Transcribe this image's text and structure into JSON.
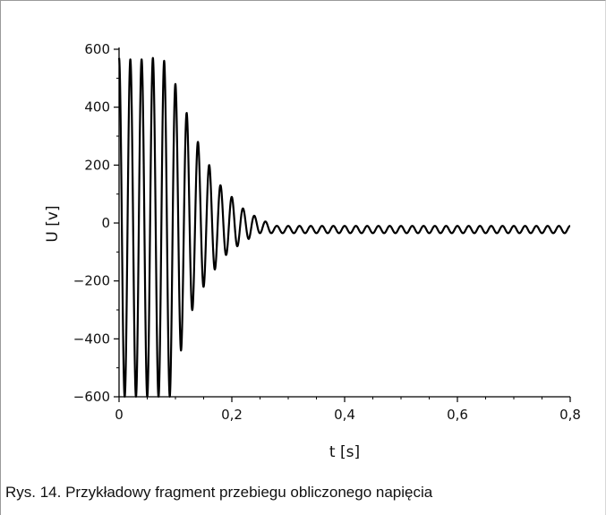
{
  "chart_data": {
    "type": "line",
    "title": "",
    "xlabel": "t [s]",
    "ylabel": "U [v]",
    "xlim": [
      0,
      0.8
    ],
    "ylim": [
      -600,
      600
    ],
    "x_ticks": [
      0,
      0.2,
      0.4,
      0.6,
      0.8
    ],
    "x_tick_labels": [
      "0",
      "0,2",
      "0,4",
      "0,6",
      "0,8"
    ],
    "y_ticks": [
      -600,
      -400,
      -200,
      0,
      200,
      400,
      600
    ],
    "y_tick_labels": [
      "−600",
      "−400",
      "−200",
      "0",
      "200",
      "400",
      "600"
    ],
    "grid": false,
    "legend": "none",
    "line_color": "#000000",
    "series": [
      {
        "signal_description": "decaying oscillation settling to a small steady ripple around -20 V",
        "x": [
          0,
          0.01,
          0.02,
          0.03,
          0.04,
          0.05,
          0.06,
          0.07,
          0.08,
          0.09,
          0.1,
          0.11,
          0.12,
          0.13,
          0.14,
          0.15,
          0.16,
          0.17,
          0.18,
          0.19,
          0.2,
          0.21,
          0.22,
          0.23,
          0.24,
          0.25,
          0.26,
          0.27,
          0.28,
          0.3,
          0.35,
          0.4,
          0.5,
          0.6,
          0.7,
          0.8
        ],
        "envelope_max": [
          570,
          565,
          565,
          570,
          565,
          570,
          570,
          565,
          560,
          520,
          480,
          420,
          380,
          320,
          280,
          230,
          200,
          160,
          130,
          110,
          90,
          70,
          50,
          35,
          25,
          15,
          5,
          -5,
          -10,
          -10,
          -10,
          -10,
          -10,
          -10,
          -10,
          -10
        ],
        "envelope_min": [
          -600,
          -600,
          -600,
          -600,
          -600,
          -600,
          -600,
          -600,
          -600,
          -600,
          -480,
          -440,
          -360,
          -300,
          -260,
          -220,
          -190,
          -160,
          -140,
          -110,
          -100,
          -80,
          -60,
          -55,
          -40,
          -35,
          -35,
          -35,
          -35,
          -35,
          -35,
          -35,
          -35,
          -35,
          -35,
          -35
        ]
      }
    ]
  },
  "caption": "Rys. 14. Przykładowy fragment przebiegu obliczonego napięcia"
}
